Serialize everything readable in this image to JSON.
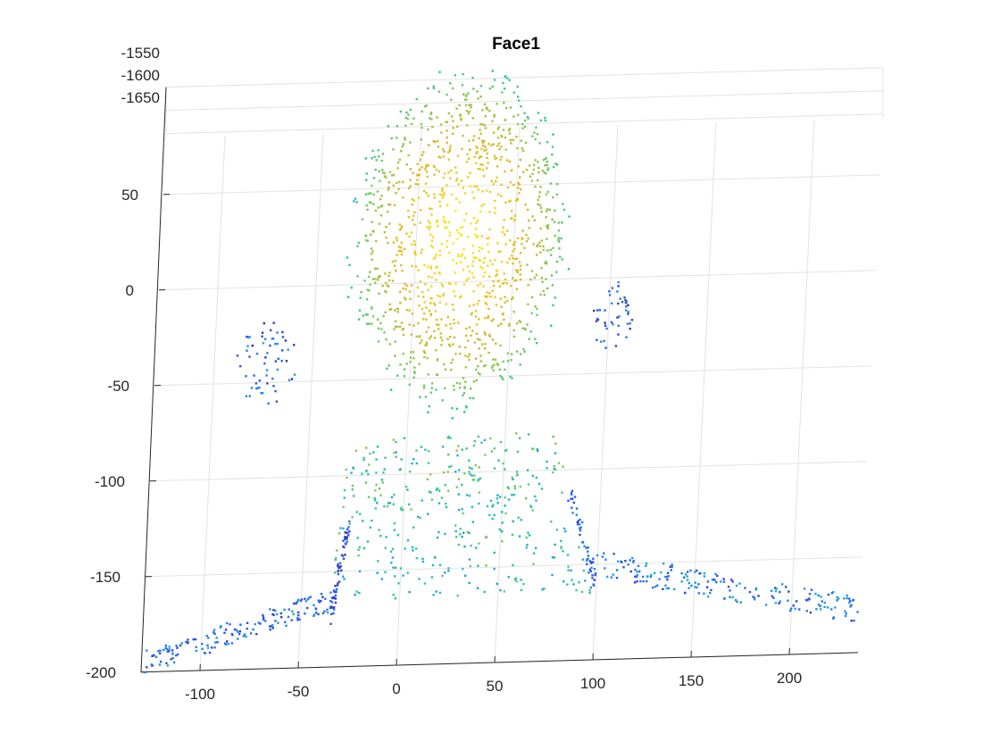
{
  "chart_data": {
    "type": "scatter",
    "title": "Face1",
    "xlabel": "",
    "ylabel": "",
    "zlabel": "",
    "xlim": [
      -130,
      235
    ],
    "ylim": [
      -200,
      80
    ],
    "zlim": [
      -1650,
      -1550
    ],
    "x_ticks": [
      -100,
      -50,
      0,
      50,
      100,
      150,
      200
    ],
    "y_ticks": [
      -200,
      -150,
      -100,
      -50,
      0,
      50
    ],
    "z_ticks": [
      -1550,
      -1600,
      -1650
    ],
    "grid": true,
    "legend": "none",
    "colormap": [
      "#3e26a8",
      "#2e5cf2",
      "#1d9fe0",
      "#22c4b0",
      "#7ccb56",
      "#d8b82a",
      "#f9d621",
      "#f9fb15"
    ],
    "colormap_name": "parula",
    "point_color_encodes": "depth",
    "point_cloud_regions": [
      {
        "name": "head",
        "shape": "ellipse",
        "center": [
          22,
          22
        ],
        "radius": [
          59,
          94
        ],
        "density": "dense",
        "count": 1150,
        "value_range": [
          0.35,
          1.0
        ]
      },
      {
        "name": "neck",
        "shape": "band",
        "y_range": [
          -165,
          -80
        ],
        "x_left_at_top": -30,
        "x_right_at_top": 77,
        "x_left_at_bottom": -35,
        "x_right_at_bottom": 100,
        "count": 380,
        "value_range": [
          0.25,
          0.65
        ]
      },
      {
        "name": "left-ear",
        "shape": "cluster",
        "center": [
          -73,
          -40
        ],
        "radius": [
          16,
          22
        ],
        "count": 60,
        "value_range": [
          0.0,
          0.3
        ]
      },
      {
        "name": "right-ear",
        "shape": "cluster",
        "center": [
          102,
          -20
        ],
        "radius": [
          10,
          20
        ],
        "count": 45,
        "value_range": [
          0.0,
          0.25
        ]
      },
      {
        "name": "left-shoulder",
        "shape": "strip",
        "from": [
          -128,
          -195
        ],
        "to": [
          -35,
          -165
        ],
        "thickness": 12,
        "count": 160,
        "value_range": [
          0.05,
          0.3
        ]
      },
      {
        "name": "right-shoulder",
        "shape": "strip",
        "from": [
          100,
          -150
        ],
        "to": [
          235,
          -178
        ],
        "thickness": 14,
        "count": 190,
        "value_range": [
          0.05,
          0.35
        ]
      },
      {
        "name": "left-neck-edge",
        "shape": "strip",
        "from": [
          -28,
          -125
        ],
        "to": [
          -35,
          -175
        ],
        "thickness": 8,
        "count": 60,
        "value_range": [
          0.0,
          0.2
        ]
      },
      {
        "name": "right-neck-edge",
        "shape": "strip",
        "from": [
          84,
          -110
        ],
        "to": [
          100,
          -160
        ],
        "thickness": 8,
        "count": 50,
        "value_range": [
          0.05,
          0.25
        ]
      }
    ]
  }
}
